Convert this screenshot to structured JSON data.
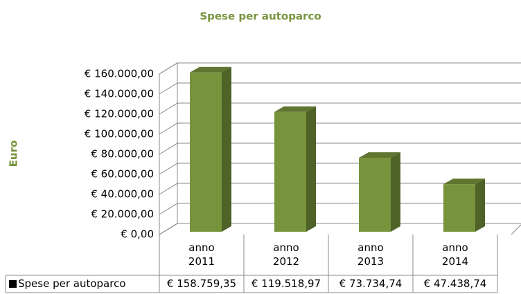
{
  "chart_data": {
    "type": "bar",
    "title": "Spese per autoparco",
    "y_label": "Euro",
    "categories": [
      "anno 2011",
      "anno 2012",
      "anno 2013",
      "anno 2014"
    ],
    "series": [
      {
        "name": "Spese per autoparco",
        "color": "#77933c",
        "values": [
          158759.35,
          119518.97,
          73734.74,
          47438.74
        ],
        "value_labels": [
          "€ 158.759,35",
          "€ 119.518,97",
          "€ 73.734,74",
          "€ 47.438,74"
        ]
      }
    ],
    "ylim": [
      0,
      160000
    ],
    "yticks": [
      {
        "value": 0,
        "label": "€ 0,00"
      },
      {
        "value": 20000,
        "label": "€ 20.000,00"
      },
      {
        "value": 40000,
        "label": "€ 40.000,00"
      },
      {
        "value": 60000,
        "label": "€ 60.000,00"
      },
      {
        "value": 80000,
        "label": "€ 80.000,00"
      },
      {
        "value": 100000,
        "label": "€ 100.000,00"
      },
      {
        "value": 120000,
        "label": "€ 120.000,00"
      },
      {
        "value": 140000,
        "label": "€ 140.000,00"
      },
      {
        "value": 160000,
        "label": "€ 160.000,00"
      }
    ],
    "grid": true
  }
}
